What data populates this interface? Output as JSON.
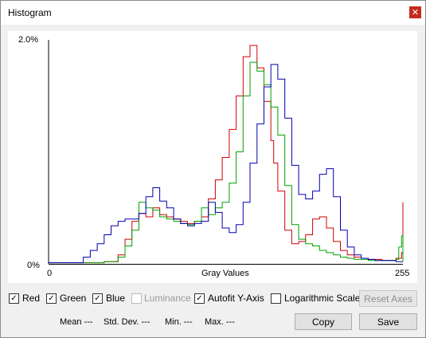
{
  "window": {
    "title": "Histogram",
    "close_glyph": "✕"
  },
  "plot": {
    "y_max_label": "2.0%",
    "y_min_label": "0%",
    "x_min_label": "0",
    "x_max_label": "255",
    "x_axis_title": "Gray Values",
    "colors": {
      "red": "#d00000",
      "green": "#00a000",
      "blue": "#0000b4"
    }
  },
  "options": {
    "red": {
      "label": "Red",
      "checked": true,
      "enabled": true
    },
    "green": {
      "label": "Green",
      "checked": true,
      "enabled": true
    },
    "blue": {
      "label": "Blue",
      "checked": true,
      "enabled": true
    },
    "luminance": {
      "label": "Luminance",
      "checked": false,
      "enabled": false
    },
    "autofit": {
      "label": "Autofit Y-Axis",
      "checked": true,
      "enabled": true
    },
    "logscale": {
      "label": "Logarithmic Scale",
      "checked": false,
      "enabled": true
    }
  },
  "buttons": {
    "reset_axes": "Reset Axes",
    "copy": "Copy",
    "save": "Save"
  },
  "stats": {
    "mean": "Mean ---",
    "std_dev": "Std. Dev. ---",
    "min": "Min. ---",
    "max": "Max. ---"
  },
  "check_glyph": "✓",
  "chart_data": {
    "type": "line",
    "title": "",
    "xlabel": "Gray Values",
    "ylabel": "",
    "xlim": [
      0,
      255
    ],
    "ylim": [
      0,
      2.0
    ],
    "y_unit": "%",
    "series": [
      {
        "name": "Red",
        "x": [
          0,
          20,
          40,
          50,
          55,
          60,
          65,
          70,
          75,
          80,
          85,
          90,
          95,
          100,
          105,
          110,
          115,
          120,
          125,
          130,
          135,
          140,
          145,
          150,
          155,
          160,
          162,
          165,
          170,
          175,
          180,
          185,
          190,
          195,
          200,
          205,
          210,
          215,
          220,
          225,
          230,
          235,
          240,
          245,
          250,
          254,
          255
        ],
        "y": [
          0.01,
          0.01,
          0.02,
          0.08,
          0.22,
          0.38,
          0.45,
          0.42,
          0.5,
          0.44,
          0.42,
          0.4,
          0.38,
          0.36,
          0.38,
          0.42,
          0.58,
          0.75,
          0.95,
          1.2,
          1.5,
          1.85,
          1.95,
          1.75,
          1.45,
          1.1,
          0.9,
          0.65,
          0.3,
          0.18,
          0.2,
          0.26,
          0.4,
          0.42,
          0.32,
          0.2,
          0.12,
          0.08,
          0.06,
          0.05,
          0.04,
          0.04,
          0.03,
          0.03,
          0.05,
          0.1,
          0.55
        ]
      },
      {
        "name": "Green",
        "x": [
          0,
          30,
          40,
          50,
          55,
          60,
          65,
          70,
          75,
          80,
          85,
          90,
          95,
          100,
          105,
          110,
          115,
          120,
          125,
          130,
          135,
          140,
          145,
          150,
          155,
          160,
          165,
          170,
          175,
          180,
          185,
          190,
          195,
          200,
          205,
          210,
          215,
          220,
          225,
          230,
          235,
          240,
          245,
          250,
          252,
          254,
          255
        ],
        "y": [
          0.01,
          0.01,
          0.02,
          0.06,
          0.16,
          0.3,
          0.55,
          0.5,
          0.48,
          0.42,
          0.4,
          0.38,
          0.36,
          0.35,
          0.38,
          0.5,
          0.44,
          0.5,
          0.55,
          0.72,
          1.0,
          1.5,
          1.8,
          1.72,
          1.6,
          1.4,
          1.15,
          0.7,
          0.35,
          0.22,
          0.18,
          0.16,
          0.12,
          0.1,
          0.08,
          0.06,
          0.05,
          0.04,
          0.04,
          0.03,
          0.03,
          0.03,
          0.03,
          0.04,
          0.15,
          0.25,
          0.02
        ]
      },
      {
        "name": "Blue",
        "x": [
          0,
          20,
          25,
          30,
          35,
          40,
          45,
          50,
          55,
          60,
          65,
          70,
          75,
          80,
          85,
          90,
          95,
          100,
          105,
          110,
          115,
          120,
          125,
          130,
          135,
          140,
          145,
          150,
          155,
          160,
          165,
          170,
          175,
          180,
          185,
          190,
          195,
          200,
          205,
          210,
          215,
          220,
          225,
          230,
          235,
          240,
          245,
          250,
          255
        ],
        "y": [
          0.01,
          0.01,
          0.06,
          0.12,
          0.18,
          0.26,
          0.34,
          0.38,
          0.4,
          0.4,
          0.45,
          0.6,
          0.68,
          0.56,
          0.5,
          0.4,
          0.36,
          0.34,
          0.36,
          0.38,
          0.55,
          0.46,
          0.32,
          0.28,
          0.35,
          0.55,
          0.9,
          1.25,
          1.58,
          1.78,
          1.65,
          1.3,
          0.88,
          0.62,
          0.58,
          0.65,
          0.8,
          0.85,
          0.6,
          0.3,
          0.15,
          0.08,
          0.05,
          0.04,
          0.03,
          0.03,
          0.03,
          0.02,
          0.02
        ]
      }
    ]
  }
}
